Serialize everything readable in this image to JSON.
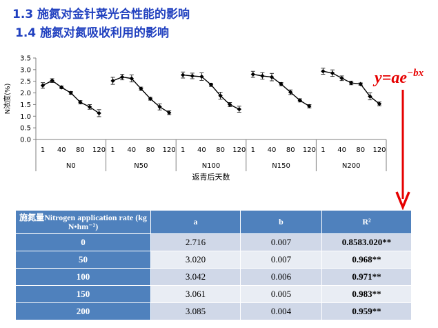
{
  "headings": {
    "h1": "1.3 施氮对金针菜光合性能的影响",
    "h2": "1.4  施氮对氮吸收利用的影响"
  },
  "formula": {
    "main": "y=ae",
    "exponent": "−bx",
    "color": "#e60000"
  },
  "chart_data": {
    "type": "line",
    "ylabel": "N浓度(%)",
    "xlabel": "返青后天数",
    "ylim": [
      0,
      3.5
    ],
    "yticks": [
      0.0,
      0.5,
      1.0,
      1.5,
      2.0,
      2.5,
      3.0,
      3.5
    ],
    "grid": false,
    "legend": "none",
    "x_tick_labels": [
      "1",
      "40",
      "80",
      "120"
    ],
    "line_color": "#000000",
    "groups": [
      {
        "name": "N0",
        "values": [
          2.32,
          2.53,
          2.24,
          2.0,
          1.6,
          1.4,
          1.13
        ],
        "errors": [
          0.12,
          0.08,
          0.06,
          0.06,
          0.07,
          0.1,
          0.15
        ]
      },
      {
        "name": "N50",
        "values": [
          2.52,
          2.68,
          2.62,
          2.18,
          1.75,
          1.4,
          1.15
        ],
        "errors": [
          0.15,
          0.12,
          0.15,
          0.07,
          0.06,
          0.13,
          0.08
        ]
      },
      {
        "name": "N100",
        "values": [
          2.77,
          2.73,
          2.7,
          2.35,
          1.88,
          1.5,
          1.3
        ],
        "errors": [
          0.13,
          0.12,
          0.16,
          0.07,
          0.15,
          0.09,
          0.13
        ]
      },
      {
        "name": "N150",
        "values": [
          2.8,
          2.73,
          2.68,
          2.38,
          2.03,
          1.68,
          1.43
        ],
        "errors": [
          0.13,
          0.14,
          0.16,
          0.07,
          0.1,
          0.07,
          0.07
        ]
      },
      {
        "name": "N200",
        "values": [
          2.93,
          2.85,
          2.63,
          2.43,
          2.38,
          1.85,
          1.53
        ],
        "errors": [
          0.13,
          0.14,
          0.1,
          0.08,
          0.05,
          0.15,
          0.08
        ]
      }
    ]
  },
  "table": {
    "headers": [
      "施氮量Nitrogen application rate (kg N•hm⁻²)",
      "a",
      "b",
      "R²"
    ],
    "rows": [
      [
        "0",
        "2.716",
        "0.007",
        "0.8583.020**"
      ],
      [
        "50",
        "3.020",
        "0.007",
        "0.968**"
      ],
      [
        "100",
        "3.042",
        "0.006",
        "0.971**"
      ],
      [
        "150",
        "3.061",
        "0.005",
        "0.983**"
      ],
      [
        "200",
        "3.085",
        "0.004",
        "0.959**"
      ]
    ]
  }
}
